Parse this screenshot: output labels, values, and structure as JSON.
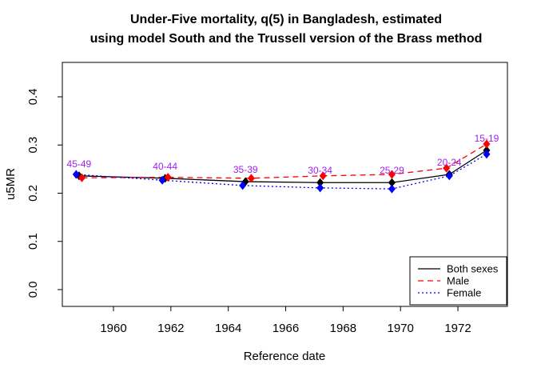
{
  "title": {
    "line1": "Under-Five mortality, q(5) in Bangladesh, estimated",
    "line2": "using model South and the Trussell version of the Brass method"
  },
  "colors": {
    "both_sexes": "#000000",
    "male": "#FF0000",
    "female": "#0000FF",
    "age_label": "#A020F0",
    "axis": "#000000",
    "background": "#FFFFFF"
  },
  "chart_data": {
    "type": "line",
    "title": "Under-Five mortality, q(5) in Bangladesh, estimated using model South and the Trussell version of the Brass method",
    "xlabel": "Reference date",
    "ylabel": "u5MR",
    "xlim": [
      1958.2,
      1973.7
    ],
    "ylim": [
      -0.035,
      0.47
    ],
    "x_ticks": [
      1960,
      1962,
      1964,
      1966,
      1968,
      1970,
      1972
    ],
    "y_ticks": [
      0.0,
      0.1,
      0.2,
      0.3,
      0.4
    ],
    "y_tick_labels": [
      "0.0",
      "0.1",
      "0.2",
      "0.3",
      "0.4"
    ],
    "grid": false,
    "legend_position": "bottom-right",
    "point_labels": [
      "45-49",
      "40-44",
      "35-39",
      "30-34",
      "25-29",
      "20-24",
      "15-19"
    ],
    "series": [
      {
        "name": "Both sexes",
        "color": "#000000",
        "dash": "solid",
        "x": [
          1958.8,
          1961.8,
          1964.6,
          1967.2,
          1969.7,
          1971.7,
          1973.0
        ],
        "y": [
          0.236,
          0.231,
          0.224,
          0.222,
          0.222,
          0.239,
          0.289
        ]
      },
      {
        "name": "Male",
        "color": "#FF0000",
        "dash": "dashed",
        "x": [
          1958.9,
          1961.9,
          1964.8,
          1967.3,
          1969.7,
          1971.6,
          1973.0
        ],
        "y": [
          0.232,
          0.233,
          0.231,
          0.236,
          0.239,
          0.252,
          0.302
        ]
      },
      {
        "name": "Female",
        "color": "#0000FF",
        "dash": "dotted",
        "x": [
          1958.7,
          1961.7,
          1964.5,
          1967.2,
          1969.7,
          1971.7,
          1973.0
        ],
        "y": [
          0.239,
          0.227,
          0.216,
          0.211,
          0.209,
          0.236,
          0.281
        ]
      }
    ]
  },
  "legend": {
    "items": [
      {
        "label": "Both sexes",
        "color": "#000000",
        "dash": "solid"
      },
      {
        "label": "Male",
        "color": "#FF0000",
        "dash": "dashed"
      },
      {
        "label": "Female",
        "color": "#0000FF",
        "dash": "dotted"
      }
    ]
  }
}
